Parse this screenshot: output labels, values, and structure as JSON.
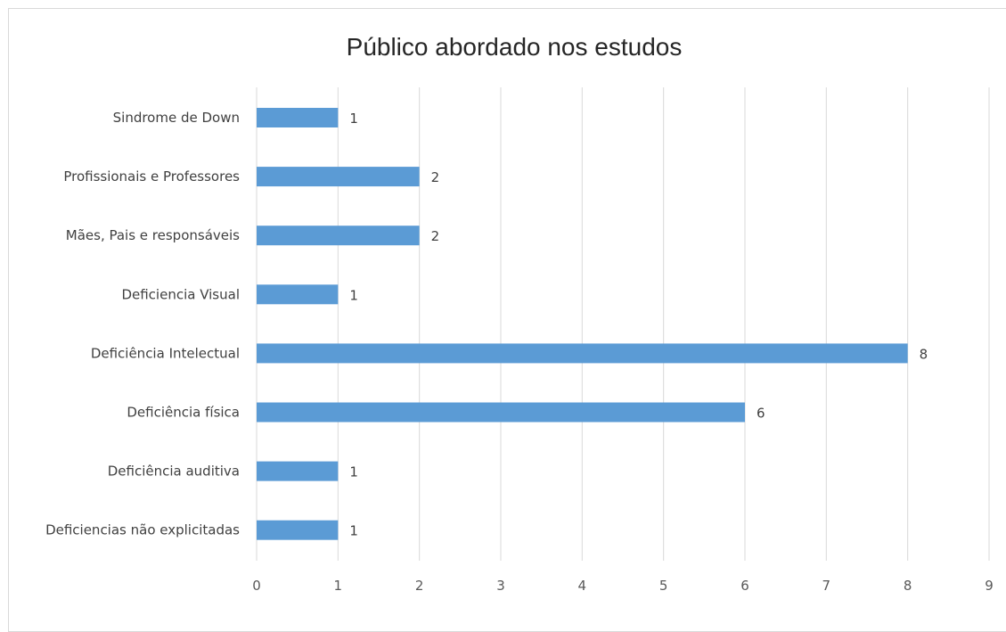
{
  "chart_data": {
    "type": "bar",
    "orientation": "horizontal",
    "title": "Público abordado nos estudos",
    "xlabel": "",
    "ylabel": "",
    "categories": [
      "Sindrome de Down",
      "Profissionais e Professores",
      "Mães, Pais e responsáveis",
      "Deficiencia Visual",
      "Deficiência Intelectual",
      "Deficiência física",
      "Deficiência auditiva",
      "Deficiencias não explicitadas"
    ],
    "values": [
      1,
      2,
      2,
      1,
      8,
      6,
      1,
      1
    ],
    "xlim": [
      0,
      9
    ],
    "xticks": [
      "0",
      "1",
      "2",
      "3",
      "4",
      "5",
      "6",
      "7",
      "8",
      "9"
    ],
    "grid": "vertical",
    "legend": "none",
    "data_labels": true,
    "colors": {
      "bar": "#5b9bd5",
      "grid": "#d9d9d9"
    }
  }
}
